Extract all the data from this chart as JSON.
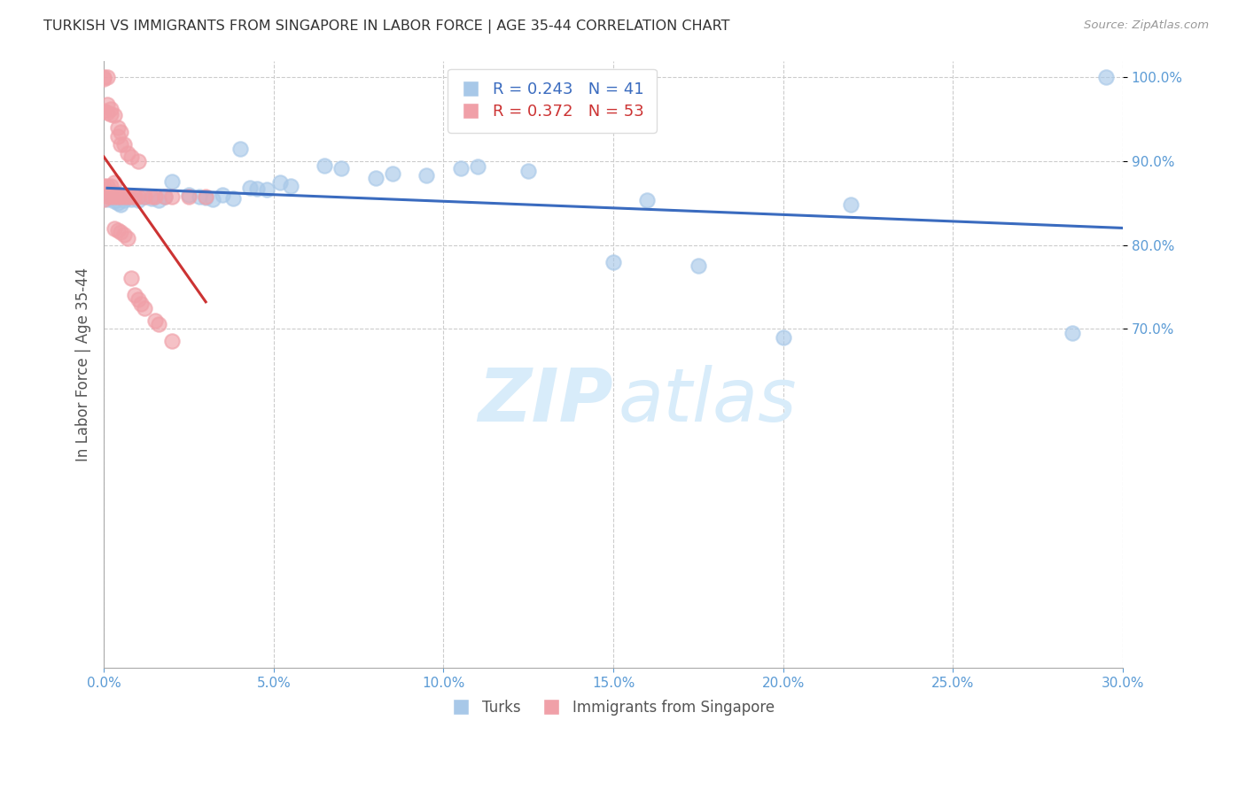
{
  "title": "TURKISH VS IMMIGRANTS FROM SINGAPORE IN LABOR FORCE | AGE 35-44 CORRELATION CHART",
  "source": "Source: ZipAtlas.com",
  "ylabel": "In Labor Force | Age 35-44",
  "xlim": [
    0.0,
    0.3
  ],
  "ylim": [
    0.295,
    1.02
  ],
  "yticks": [
    0.7,
    0.8,
    0.9,
    1.0
  ],
  "ytick_labels": [
    "70.0%",
    "80.0%",
    "90.0%",
    "100.0%"
  ],
  "xticks": [
    0.0,
    0.05,
    0.1,
    0.15,
    0.2,
    0.25,
    0.3
  ],
  "xtick_labels": [
    "0.0%",
    "5.0%",
    "10.0%",
    "15.0%",
    "20.0%",
    "25.0%",
    "30.0%"
  ],
  "blue_color": "#A8C8E8",
  "pink_color": "#F0A0A8",
  "blue_line_color": "#3A6BBF",
  "pink_line_color": "#CC3333",
  "legend_blue_R": "0.243",
  "legend_blue_N": "41",
  "legend_pink_R": "0.372",
  "legend_pink_N": "53",
  "legend_label_blue": "Turks",
  "legend_label_pink": "Immigrants from Singapore",
  "blue_x": [
    0.001,
    0.002,
    0.003,
    0.004,
    0.005,
    0.006,
    0.007,
    0.008,
    0.01,
    0.012,
    0.014,
    0.016,
    0.018,
    0.02,
    0.025,
    0.028,
    0.03,
    0.032,
    0.035,
    0.038,
    0.04,
    0.043,
    0.045,
    0.048,
    0.052,
    0.055,
    0.065,
    0.07,
    0.08,
    0.085,
    0.095,
    0.105,
    0.11,
    0.125,
    0.15,
    0.16,
    0.175,
    0.2,
    0.22,
    0.285,
    0.295
  ],
  "blue_y": [
    0.855,
    0.858,
    0.852,
    0.85,
    0.848,
    0.853,
    0.857,
    0.855,
    0.854,
    0.858,
    0.856,
    0.854,
    0.858,
    0.876,
    0.86,
    0.858,
    0.857,
    0.855,
    0.86,
    0.856,
    0.915,
    0.868,
    0.867,
    0.866,
    0.875,
    0.87,
    0.895,
    0.892,
    0.88,
    0.885,
    0.883,
    0.892,
    0.894,
    0.888,
    0.78,
    0.854,
    0.775,
    0.69,
    0.848,
    0.695,
    1.0
  ],
  "pink_x": [
    0.0,
    0.0,
    0.0,
    0.0,
    0.0,
    0.001,
    0.001,
    0.001,
    0.001,
    0.001,
    0.002,
    0.002,
    0.002,
    0.002,
    0.003,
    0.003,
    0.003,
    0.003,
    0.004,
    0.004,
    0.004,
    0.005,
    0.005,
    0.005,
    0.006,
    0.006,
    0.007,
    0.007,
    0.008,
    0.008,
    0.009,
    0.01,
    0.01,
    0.012,
    0.014,
    0.015,
    0.018,
    0.02,
    0.025,
    0.03,
    0.003,
    0.004,
    0.005,
    0.006,
    0.007,
    0.008,
    0.009,
    0.01,
    0.011,
    0.012,
    0.015,
    0.016,
    0.02
  ],
  "pink_y": [
    1.0,
    0.998,
    0.96,
    0.87,
    0.855,
    1.0,
    0.968,
    0.958,
    0.87,
    0.858,
    0.962,
    0.956,
    0.87,
    0.858,
    0.955,
    0.875,
    0.862,
    0.858,
    0.94,
    0.93,
    0.858,
    0.935,
    0.92,
    0.858,
    0.92,
    0.858,
    0.91,
    0.858,
    0.905,
    0.858,
    0.858,
    0.9,
    0.858,
    0.858,
    0.858,
    0.858,
    0.858,
    0.858,
    0.858,
    0.858,
    0.82,
    0.818,
    0.815,
    0.812,
    0.808,
    0.76,
    0.74,
    0.735,
    0.73,
    0.725,
    0.71,
    0.705,
    0.685
  ],
  "background_color": "#FFFFFF",
  "grid_color": "#CCCCCC",
  "title_color": "#333333",
  "tick_color": "#5B9BD5",
  "watermark_color": "#D8ECFA"
}
